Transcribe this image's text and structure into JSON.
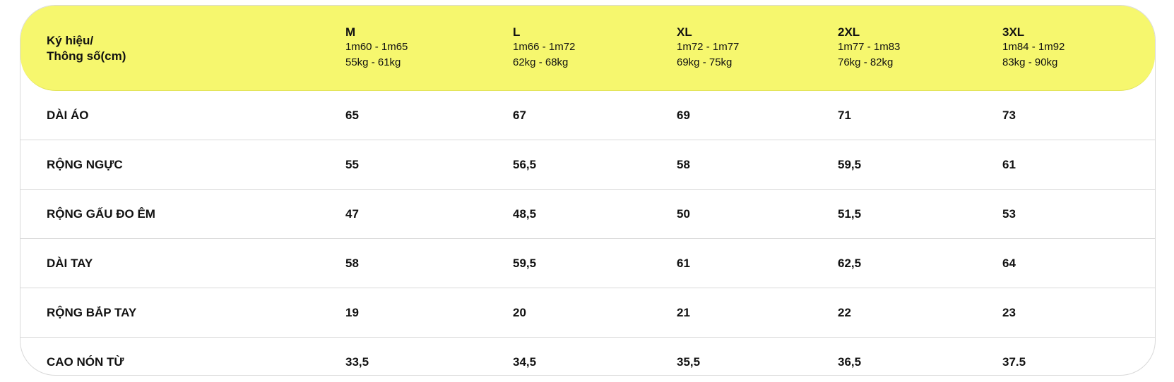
{
  "header": {
    "label_line1": "Ký hiệu/",
    "label_line2": "Thông số(cm)",
    "sizes": [
      {
        "name": "M",
        "height": "1m60 - 1m65",
        "weight": "55kg - 61kg"
      },
      {
        "name": "L",
        "height": "1m66 - 1m72",
        "weight": "62kg - 68kg"
      },
      {
        "name": "XL",
        "height": "1m72 - 1m77",
        "weight": "69kg - 75kg"
      },
      {
        "name": "2XL",
        "height": "1m77 - 1m83",
        "weight": "76kg - 82kg"
      },
      {
        "name": "3XL",
        "height": "1m84 - 1m92",
        "weight": "83kg - 90kg"
      }
    ]
  },
  "rows": [
    {
      "label": "DÀI ÁO",
      "values": [
        "65",
        "67",
        "69",
        "71",
        "73"
      ]
    },
    {
      "label": "RỘNG NGỰC",
      "values": [
        "55",
        "56,5",
        "58",
        "59,5",
        "61"
      ]
    },
    {
      "label": "RỘNG GẤU ĐO ÊM",
      "values": [
        "47",
        "48,5",
        "50",
        "51,5",
        "53"
      ]
    },
    {
      "label": "DÀI TAY",
      "values": [
        "58",
        "59,5",
        "61",
        "62,5",
        "64"
      ]
    },
    {
      "label": "RỘNG BẮP TAY",
      "values": [
        "19",
        "20",
        "21",
        "22",
        "23"
      ]
    },
    {
      "label": "CAO NÓN TỪ",
      "values": [
        "33,5",
        "34,5",
        "35,5",
        "36,5",
        "37.5"
      ]
    }
  ],
  "colors": {
    "header_bg": "#f6f76e",
    "border": "#d9d9d9"
  }
}
